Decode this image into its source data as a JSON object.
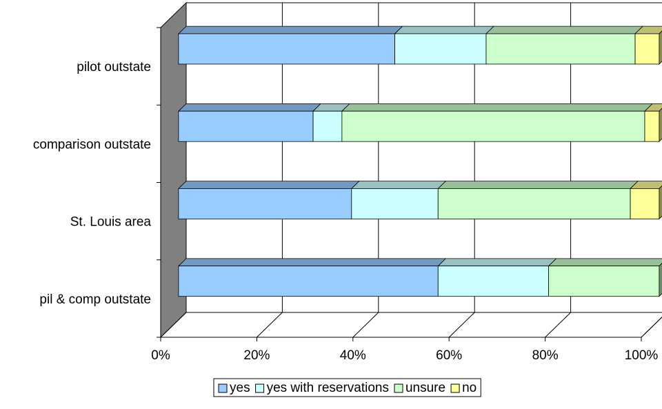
{
  "chart_data": {
    "type": "bar",
    "orientation": "horizontal",
    "stacked": "percent",
    "three_d": true,
    "categories": [
      "pilot outstate",
      "comparison outstate",
      "St. Louis area",
      "pil & comp outstate"
    ],
    "series": [
      {
        "name": "yes",
        "values": [
          45,
          28,
          36,
          54
        ],
        "color": "#99ccff"
      },
      {
        "name": "yes with reservations",
        "values": [
          19,
          6,
          18,
          23
        ],
        "color": "#ccffff"
      },
      {
        "name": "unsure",
        "values": [
          31,
          63,
          40,
          23
        ],
        "color": "#ccffcc"
      },
      {
        "name": "no",
        "values": [
          5,
          3,
          6,
          0
        ],
        "color": "#ffff99"
      }
    ],
    "x_ticks": [
      "0%",
      "20%",
      "40%",
      "60%",
      "80%",
      "100%"
    ],
    "xlim": [
      0,
      100
    ],
    "grid": true,
    "legend_position": "bottom",
    "title": "",
    "xlabel": "",
    "ylabel": ""
  },
  "colors": {
    "wall": "#808080",
    "gridline": "#000000",
    "legend_border": "#000000"
  }
}
